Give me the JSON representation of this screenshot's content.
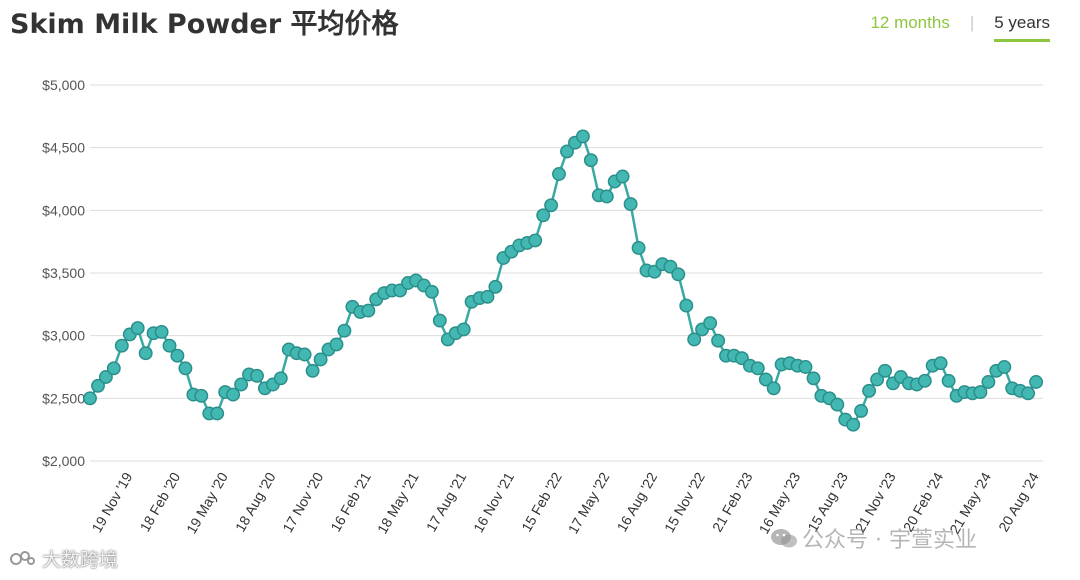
{
  "title": "Skim Milk Powder 平均价格",
  "tabs": {
    "twelve_months": "12 months",
    "five_years": "5 years",
    "active": "5 years",
    "active_color": "#8dc63f"
  },
  "watermarks": {
    "left": "大数跨境",
    "right": "公众号 · 宇萱实业"
  },
  "icons": {
    "wechat": "wechat-icon",
    "brand": "brand-logo-icon"
  },
  "colors": {
    "line": "#3aa9a4",
    "marker_fill": "#43b8b2",
    "marker_stroke": "#2a8f8a",
    "grid": "#dddddd",
    "title": "#333333"
  },
  "chart_data": {
    "type": "line",
    "title": "",
    "xlabel": "",
    "ylabel": "",
    "ylim": [
      2000,
      5000
    ],
    "yticks": [
      2000,
      2500,
      3000,
      3500,
      4000,
      4500,
      5000
    ],
    "ytick_labels": [
      "$2,000",
      "$2,500",
      "$3,000",
      "$3,500",
      "$4,000",
      "$4,500",
      "$5,000"
    ],
    "xtick_labels": [
      "19 Nov '19",
      "18 Feb '20",
      "19 May '20",
      "18 Aug '20",
      "17 Nov '20",
      "16 Feb '21",
      "18 May '21",
      "17 Aug '21",
      "16 Nov '21",
      "15 Feb '22",
      "17 May '22",
      "16 Aug '22",
      "15 Nov '22",
      "21 Feb '23",
      "16 May '23",
      "15 Aug '23",
      "21 Nov '23",
      "20 Feb '24",
      "21 May '24",
      "20 Aug '24"
    ],
    "xtick_positions": [
      5.4,
      11.4,
      17.4,
      23.4,
      29.4,
      35.4,
      41.4,
      47.4,
      53.4,
      59.4,
      65.4,
      71.4,
      77.4,
      83.4,
      89.4,
      95.4,
      101.4,
      107.4,
      113.4,
      119.4
    ],
    "grid": "horizontal",
    "legend": "none",
    "series": [
      {
        "name": "",
        "values": [
          2500,
          2600,
          2670,
          2740,
          2920,
          3010,
          3060,
          2860,
          3020,
          3030,
          2920,
          2840,
          2740,
          2530,
          2520,
          2380,
          2380,
          2550,
          2530,
          2610,
          2690,
          2680,
          2580,
          2610,
          2660,
          2890,
          2860,
          2850,
          2720,
          2810,
          2890,
          2930,
          3040,
          3230,
          3190,
          3200,
          3290,
          3340,
          3360,
          3360,
          3420,
          3440,
          3400,
          3350,
          3120,
          2970,
          3020,
          3050,
          3270,
          3300,
          3310,
          3390,
          3620,
          3670,
          3720,
          3740,
          3760,
          3960,
          4040,
          4290,
          4470,
          4540,
          4590,
          4400,
          4120,
          4110,
          4230,
          4270,
          4050,
          3700,
          3520,
          3510,
          3570,
          3550,
          3490,
          3240,
          2970,
          3050,
          3100,
          2960,
          2840,
          2840,
          2820,
          2760,
          2740,
          2650,
          2580,
          2770,
          2780,
          2760,
          2750,
          2660,
          2520,
          2500,
          2450,
          2330,
          2290,
          2400,
          2560,
          2650,
          2720,
          2620,
          2670,
          2620,
          2610,
          2640,
          2760,
          2780,
          2640,
          2520,
          2550,
          2540,
          2550,
          2630,
          2720,
          2750,
          2580,
          2560,
          2540,
          2630
        ]
      }
    ]
  }
}
